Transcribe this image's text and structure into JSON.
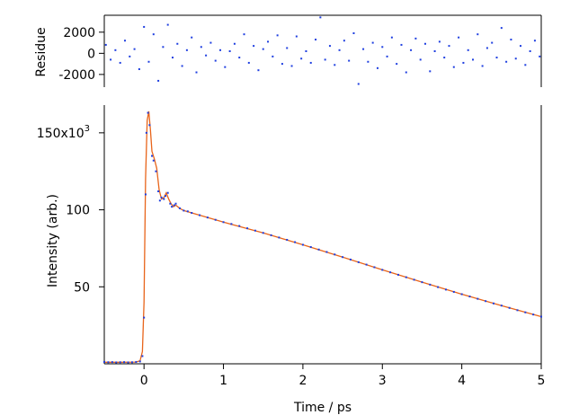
{
  "chart_data": [
    {
      "type": "scatter",
      "panel": "residue",
      "title": "",
      "xlabel": "",
      "ylabel": "Residue",
      "xlim": [
        -0.5,
        5
      ],
      "ylim": [
        -3200,
        3600
      ],
      "y_ticks": [
        2000,
        0,
        -2000
      ],
      "y_tick_labels": [
        "2000",
        "0",
        "-2000"
      ],
      "colors": {
        "points": "#1f3fe0"
      },
      "series": [
        {
          "values_desc": "residuals scattered about 0",
          "x": [
            -0.48,
            -0.42,
            -0.36,
            -0.3,
            -0.24,
            -0.18,
            -0.12,
            -0.06,
            0.0,
            0.06,
            0.12,
            0.18,
            0.24,
            0.3,
            0.36,
            0.42,
            0.48,
            0.54,
            0.6,
            0.66,
            0.72,
            0.78,
            0.84,
            0.9,
            0.96,
            1.02,
            1.08,
            1.14,
            1.2,
            1.26,
            1.32,
            1.38,
            1.44,
            1.5,
            1.56,
            1.62,
            1.68,
            1.74,
            1.8,
            1.86,
            1.92,
            1.98,
            2.04,
            2.1,
            2.16,
            2.22,
            2.28,
            2.34,
            2.4,
            2.46,
            2.52,
            2.58,
            2.64,
            2.7,
            2.76,
            2.82,
            2.88,
            2.94,
            3.0,
            3.06,
            3.12,
            3.18,
            3.24,
            3.3,
            3.36,
            3.42,
            3.48,
            3.54,
            3.6,
            3.66,
            3.72,
            3.78,
            3.84,
            3.9,
            3.96,
            4.02,
            4.08,
            4.14,
            4.2,
            4.26,
            4.32,
            4.38,
            4.44,
            4.5,
            4.56,
            4.62,
            4.68,
            4.74,
            4.8,
            4.86,
            4.92,
            4.98
          ],
          "y": [
            800,
            -600,
            300,
            -900,
            1200,
            -300,
            400,
            -1500,
            2500,
            -800,
            1800,
            -2600,
            600,
            2700,
            -400,
            900,
            -1200,
            300,
            1500,
            -1800,
            600,
            -200,
            1000,
            -700,
            300,
            -1300,
            200,
            900,
            -400,
            1800,
            -900,
            700,
            -1600,
            400,
            1100,
            -300,
            1700,
            -1000,
            500,
            -1200,
            1600,
            -500,
            200,
            -900,
            1300,
            3400,
            -600,
            700,
            -1100,
            300,
            1200,
            -700,
            1900,
            -2900,
            400,
            -800,
            1000,
            -1400,
            600,
            -300,
            1500,
            -1000,
            800,
            -1800,
            300,
            1400,
            -600,
            900,
            -1700,
            200,
            1100,
            -400,
            700,
            -1300,
            1500,
            -900,
            300,
            -600,
            1800,
            -1200,
            500,
            1000,
            -400,
            2400,
            -800,
            1300,
            -500,
            700,
            -1100,
            200,
            1200,
            -300
          ]
        }
      ]
    },
    {
      "type": "scatter",
      "panel": "main",
      "title": "",
      "xlabel": "Time / ps",
      "ylabel": "Intensity (arb.)",
      "xlim": [
        -0.5,
        5
      ],
      "ylim": [
        0,
        168000
      ],
      "x_ticks": [
        0,
        1,
        2,
        3,
        4,
        5
      ],
      "x_tick_labels": [
        "0",
        "1",
        "2",
        "3",
        "4",
        "5"
      ],
      "y_ticks": [
        50000,
        100000,
        150000
      ],
      "y_tick_labels": [
        "50",
        "100",
        "150x10"
      ],
      "y_tick_exponent": "3",
      "legend": "none",
      "colors": {
        "data_points": "#1f3fe0",
        "fit_line": "#e8641a"
      },
      "series": [
        {
          "role": "data",
          "kind": "points",
          "x": [
            -0.5,
            -0.45,
            -0.4,
            -0.35,
            -0.3,
            -0.25,
            -0.2,
            -0.15,
            -0.1,
            -0.05,
            -0.02,
            0.0,
            0.02,
            0.03,
            0.05,
            0.07,
            0.1,
            0.12,
            0.15,
            0.18,
            0.2,
            0.22,
            0.25,
            0.27,
            0.3,
            0.33,
            0.35,
            0.38,
            0.4,
            0.45,
            0.5,
            0.55,
            0.6,
            0.7,
            0.8,
            0.9,
            1.0,
            1.1,
            1.2,
            1.3,
            1.4,
            1.5,
            1.6,
            1.7,
            1.8,
            1.9,
            2.0,
            2.1,
            2.2,
            2.3,
            2.4,
            2.5,
            2.6,
            2.7,
            2.8,
            2.9,
            3.0,
            3.1,
            3.2,
            3.3,
            3.4,
            3.5,
            3.6,
            3.7,
            3.8,
            3.9,
            4.0,
            4.1,
            4.2,
            4.3,
            4.4,
            4.5,
            4.6,
            4.7,
            4.8,
            4.9,
            5.0
          ],
          "y": [
            1200,
            1000,
            1100,
            900,
            1000,
            1100,
            900,
            1000,
            1200,
            1500,
            5000,
            30000,
            110000,
            150000,
            163000,
            155000,
            135000,
            132000,
            125000,
            112000,
            106000,
            108000,
            107000,
            109000,
            111000,
            104000,
            102000,
            103000,
            104000,
            101000,
            99500,
            99000,
            98000,
            96500,
            95000,
            93500,
            92000,
            90800,
            89500,
            88000,
            86500,
            85000,
            83500,
            82000,
            80500,
            79000,
            77300,
            75800,
            74200,
            72600,
            71000,
            69300,
            67700,
            66000,
            64400,
            62700,
            61000,
            59400,
            57800,
            56200,
            54600,
            53000,
            51400,
            49800,
            48200,
            46700,
            45200,
            43700,
            42200,
            40700,
            39200,
            37800,
            36300,
            34800,
            33400,
            32000,
            30600
          ]
        },
        {
          "role": "fit",
          "kind": "line",
          "x": [
            -0.5,
            -0.3,
            -0.1,
            -0.05,
            -0.02,
            0.0,
            0.02,
            0.04,
            0.06,
            0.08,
            0.1,
            0.13,
            0.16,
            0.19,
            0.22,
            0.25,
            0.28,
            0.31,
            0.34,
            0.37,
            0.4,
            0.45,
            0.5,
            0.6,
            0.8,
            1.0,
            1.5,
            2.0,
            2.5,
            3.0,
            3.5,
            4.0,
            4.5,
            5.0
          ],
          "y": [
            1000,
            1000,
            1100,
            2000,
            8000,
            40000,
            120000,
            158000,
            164000,
            152000,
            138000,
            133000,
            127000,
            113000,
            107000,
            108000,
            111000,
            107000,
            104000,
            102000,
            103000,
            101000,
            99500,
            98000,
            95000,
            92000,
            85000,
            77300,
            69300,
            61000,
            53000,
            45200,
            37800,
            30600
          ]
        }
      ]
    }
  ]
}
